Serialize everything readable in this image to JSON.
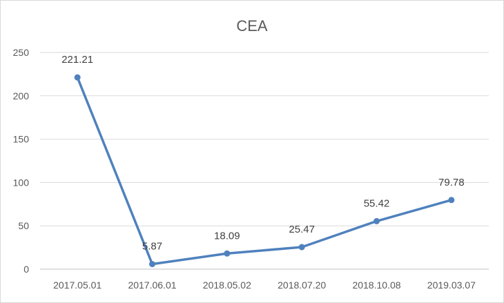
{
  "chart_data": {
    "type": "line",
    "title": "CEA",
    "xlabel": "",
    "ylabel": "",
    "categories": [
      "2017.05.01",
      "2017.06.01",
      "2018.05.02",
      "2018.07.20",
      "2018.10.08",
      "2019.03.07"
    ],
    "series": [
      {
        "values": [
          221.21,
          5.87,
          18.09,
          25.47,
          55.42,
          79.78
        ],
        "labels": [
          "221.21",
          "5.87",
          "18.09",
          "25.47",
          "55.42",
          "79.78"
        ],
        "color": "#4f81bd"
      }
    ],
    "ylim": [
      0,
      250
    ],
    "yticks": [
      0,
      50,
      100,
      150,
      200,
      250
    ],
    "ytick_labels": [
      "0",
      "50",
      "100",
      "150",
      "200",
      "250"
    ],
    "grid": true,
    "legend": "none"
  }
}
